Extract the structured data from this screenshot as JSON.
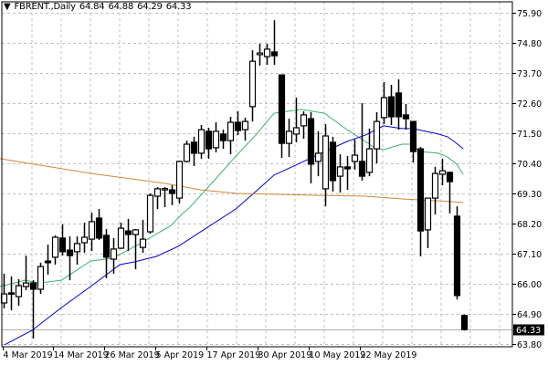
{
  "header": {
    "menu_icon": "triangle-down-icon",
    "symbol": "FBRENT.,Daily",
    "open": "64.84",
    "high": "64.88",
    "low": "64.29",
    "close": "64.33"
  },
  "chart_data": {
    "type": "candlestick",
    "title": "FBRENT.,Daily",
    "ylim": [
      63.8,
      75.9
    ],
    "y_ticks": [
      "75.90",
      "74.80",
      "73.70",
      "72.60",
      "71.50",
      "70.40",
      "69.30",
      "68.20",
      "67.10",
      "66.00",
      "64.90",
      "63.80"
    ],
    "current_price": "64.33",
    "grid": true,
    "x_labels": [
      {
        "label": "4 Mar 2019",
        "bar": 0
      },
      {
        "label": "14 Mar 2019",
        "bar": 7
      },
      {
        "label": "26 Mar 2019",
        "bar": 14
      },
      {
        "label": "5 Apr 2019",
        "bar": 21
      },
      {
        "label": "17 Apr 2019",
        "bar": 28
      },
      {
        "label": "30 Apr 2019",
        "bar": 35
      },
      {
        "label": "10 May 2019",
        "bar": 42
      },
      {
        "label": "22 May 2019",
        "bar": 49
      }
    ],
    "ohlc": [
      [
        65.3,
        66.37,
        65.1,
        65.63
      ],
      [
        65.67,
        66.27,
        65.03,
        65.63
      ],
      [
        65.53,
        66.17,
        65.2,
        65.93
      ],
      [
        65.9,
        67.03,
        65.77,
        66.03
      ],
      [
        66.03,
        66.13,
        64.0,
        65.8
      ],
      [
        65.8,
        66.77,
        65.63,
        66.63
      ],
      [
        66.83,
        67.43,
        66.33,
        66.77
      ],
      [
        66.97,
        67.77,
        66.7,
        67.7
      ],
      [
        67.67,
        68.17,
        67.03,
        67.17
      ],
      [
        67.23,
        67.73,
        66.13,
        67.03
      ],
      [
        67.17,
        67.73,
        66.7,
        67.47
      ],
      [
        67.5,
        68.23,
        67.13,
        67.7
      ],
      [
        67.63,
        68.6,
        67.2,
        68.27
      ],
      [
        68.4,
        68.73,
        67.6,
        67.67
      ],
      [
        67.77,
        68.0,
        66.2,
        66.97
      ],
      [
        66.9,
        67.67,
        66.37,
        67.27
      ],
      [
        67.3,
        68.23,
        67.27,
        68.03
      ],
      [
        67.93,
        68.37,
        67.2,
        67.8
      ],
      [
        67.8,
        68.0,
        66.53,
        67.97
      ],
      [
        67.33,
        68.33,
        67.13,
        67.63
      ],
      [
        67.9,
        69.3,
        67.83,
        69.23
      ],
      [
        69.2,
        69.53,
        68.73,
        69.47
      ],
      [
        69.47,
        69.53,
        68.8,
        69.48
      ],
      [
        69.43,
        69.6,
        68.87,
        69.3
      ],
      [
        69.13,
        70.5,
        68.93,
        70.47
      ],
      [
        70.47,
        71.23,
        70.43,
        71.1
      ],
      [
        71.17,
        71.37,
        70.3,
        70.77
      ],
      [
        70.77,
        71.8,
        70.57,
        71.63
      ],
      [
        71.57,
        71.7,
        70.57,
        70.93
      ],
      [
        70.97,
        71.9,
        70.8,
        71.57
      ],
      [
        71.47,
        71.63,
        70.93,
        71.23
      ],
      [
        71.23,
        72.1,
        70.73,
        71.9
      ],
      [
        71.9,
        72.3,
        71.43,
        71.6
      ],
      [
        71.63,
        72.07,
        71.23,
        71.93
      ],
      [
        72.47,
        74.53,
        71.93,
        74.13
      ],
      [
        74.37,
        74.77,
        73.97,
        74.43
      ],
      [
        74.3,
        74.77,
        74.0,
        74.57
      ],
      [
        74.47,
        75.63,
        74.0,
        74.33
      ],
      [
        73.63,
        73.63,
        70.6,
        71.13
      ],
      [
        71.13,
        72.03,
        70.63,
        71.57
      ],
      [
        71.47,
        72.8,
        71.17,
        71.7
      ],
      [
        71.77,
        72.3,
        71.3,
        72.17
      ],
      [
        72.03,
        72.27,
        69.67,
        70.37
      ],
      [
        70.47,
        71.57,
        69.93,
        70.77
      ],
      [
        69.47,
        71.83,
        68.83,
        71.4
      ],
      [
        71.17,
        71.37,
        69.37,
        69.77
      ],
      [
        69.93,
        70.73,
        69.33,
        70.27
      ],
      [
        70.27,
        70.67,
        69.43,
        70.2
      ],
      [
        70.47,
        71.27,
        70.17,
        70.7
      ],
      [
        70.47,
        72.6,
        69.77,
        69.93
      ],
      [
        70.07,
        71.67,
        69.93,
        70.93
      ],
      [
        70.93,
        72.27,
        70.4,
        71.93
      ],
      [
        72.07,
        73.37,
        71.83,
        72.8
      ],
      [
        72.83,
        73.27,
        71.8,
        72.1
      ],
      [
        72.97,
        73.47,
        71.63,
        72.1
      ],
      [
        72.17,
        72.57,
        71.63,
        72.03
      ],
      [
        71.93,
        71.93,
        70.43,
        70.83
      ],
      [
        70.93,
        71.0,
        67.0,
        67.93
      ],
      [
        67.97,
        69.13,
        67.3,
        69.13
      ],
      [
        69.13,
        70.27,
        68.53,
        70.03
      ],
      [
        70.0,
        70.57,
        69.6,
        70.13
      ],
      [
        70.07,
        70.1,
        68.57,
        69.73
      ],
      [
        68.47,
        68.83,
        65.43,
        65.57
      ],
      [
        64.84,
        64.88,
        64.29,
        64.33
      ]
    ],
    "series": [
      {
        "name": "ma-fast",
        "color": "#3cb371",
        "points": [
          [
            -0.5,
            65.9
          ],
          [
            2.9,
            66.13
          ],
          [
            4.9,
            66.03
          ],
          [
            7.9,
            66.13
          ],
          [
            11.9,
            66.83
          ],
          [
            14.9,
            66.93
          ],
          [
            18.9,
            67.5
          ],
          [
            22.9,
            68.13
          ],
          [
            24.5,
            68.57
          ],
          [
            25.4,
            68.77
          ],
          [
            28.9,
            69.8
          ],
          [
            31.9,
            70.7
          ],
          [
            34.5,
            71.43
          ],
          [
            37,
            72.23
          ],
          [
            40.75,
            72.37
          ],
          [
            43.9,
            72.23
          ],
          [
            47,
            71.63
          ],
          [
            49.5,
            71.2
          ],
          [
            50.75,
            70.97
          ],
          [
            52,
            70.9
          ],
          [
            54.5,
            71.1
          ],
          [
            55.75,
            71.1
          ],
          [
            57,
            70.83
          ],
          [
            59.5,
            70.77
          ],
          [
            60.75,
            70.63
          ],
          [
            62,
            70.37
          ],
          [
            62.9,
            70.0
          ]
        ]
      },
      {
        "name": "ma-medium",
        "color": "#0000cd",
        "points": [
          [
            0.1,
            63.77
          ],
          [
            3.9,
            64.3
          ],
          [
            7.9,
            65.13
          ],
          [
            11.9,
            65.9
          ],
          [
            15.9,
            66.7
          ],
          [
            17.9,
            66.8
          ],
          [
            20.9,
            67.0
          ],
          [
            23.9,
            67.37
          ],
          [
            31.75,
            68.73
          ],
          [
            34.5,
            69.37
          ],
          [
            37,
            69.97
          ],
          [
            40.75,
            70.43
          ],
          [
            42.9,
            70.7
          ],
          [
            47,
            71.2
          ],
          [
            49.5,
            71.43
          ],
          [
            52,
            71.77
          ],
          [
            54.5,
            71.67
          ],
          [
            56,
            71.67
          ],
          [
            59.5,
            71.47
          ],
          [
            60.75,
            71.37
          ],
          [
            62,
            71.13
          ],
          [
            62.9,
            70.93
          ]
        ]
      },
      {
        "name": "ma-slow",
        "color": "#d2873a",
        "points": [
          [
            -0.5,
            70.57
          ],
          [
            12,
            70.03
          ],
          [
            22,
            69.67
          ],
          [
            27,
            69.43
          ],
          [
            32,
            69.3
          ],
          [
            37,
            69.27
          ],
          [
            43.25,
            69.23
          ],
          [
            49.5,
            69.2
          ],
          [
            54.5,
            69.1
          ],
          [
            59.5,
            69.03
          ],
          [
            62.9,
            68.97
          ]
        ]
      }
    ]
  }
}
